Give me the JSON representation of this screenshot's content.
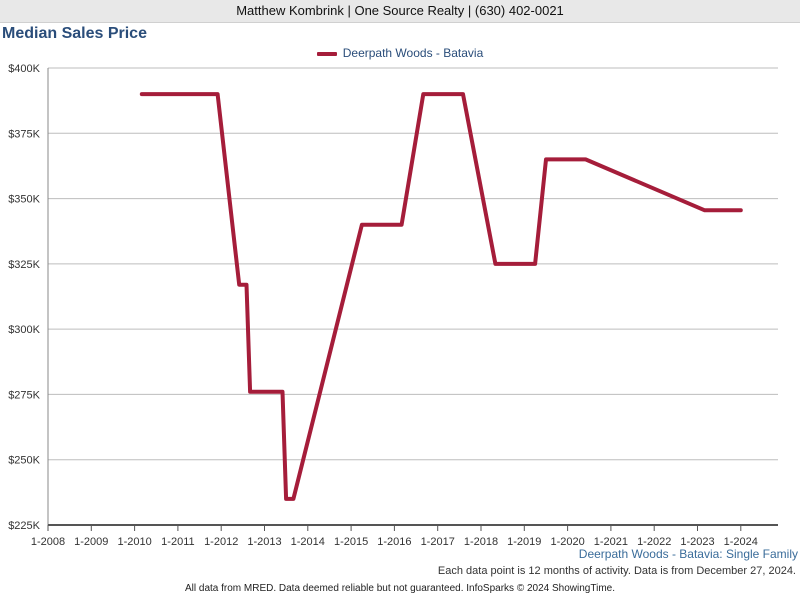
{
  "header": {
    "text": "Matthew Kombrink | One Source Realty | (630) 402-0021"
  },
  "chart_data": {
    "type": "line",
    "title": "Median Sales Price",
    "subtitle": "Deerpath Woods - Batavia: Single Family",
    "note": "Each data point is 12 months of activity. Data is from December 27, 2024.",
    "legend": "top-center",
    "grid": true,
    "x_ticks": [
      "1-2008",
      "1-2009",
      "1-2010",
      "1-2011",
      "1-2012",
      "1-2013",
      "1-2014",
      "1-2015",
      "1-2016",
      "1-2017",
      "1-2018",
      "1-2019",
      "1-2020",
      "1-2021",
      "1-2022",
      "1-2023",
      "1-2024"
    ],
    "xlim": [
      "2008-01",
      "2024-12"
    ],
    "y_ticks": [
      "$225K",
      "$250K",
      "$275K",
      "$300K",
      "$325K",
      "$350K",
      "$375K",
      "$400K"
    ],
    "ylim": [
      225000,
      400000
    ],
    "series": [
      {
        "name": "Deerpath Woods - Batavia",
        "color": "#a51d3a",
        "x": [
          "2010-03",
          "2011-12",
          "2012-06",
          "2012-08",
          "2012-09",
          "2013-06",
          "2013-07",
          "2013-09",
          "2015-04",
          "2016-03",
          "2016-09",
          "2017-08",
          "2018-05",
          "2019-04",
          "2019-07",
          "2020-06",
          "2023-03",
          "2024-01"
        ],
        "y": [
          390000,
          390000,
          317000,
          317000,
          276000,
          276000,
          235000,
          235000,
          340000,
          340000,
          390000,
          390000,
          325000,
          325000,
          365000,
          365000,
          345500,
          345500
        ]
      }
    ]
  },
  "footer": {
    "text": "All data from MRED. Data deemed reliable but not guaranteed. InfoSparks © 2024 ShowingTime."
  }
}
